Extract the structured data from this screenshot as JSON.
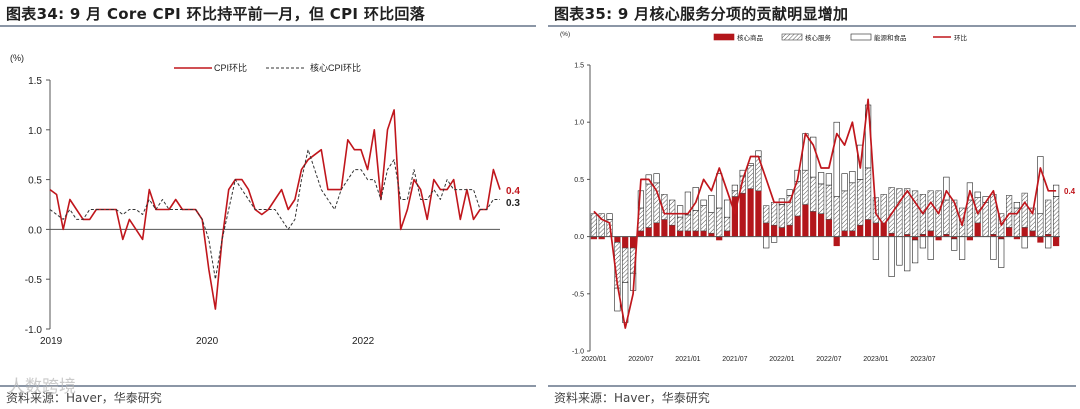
{
  "left": {
    "title": "图表34:  9 月 Core CPI 环比持平前一月，但 CPI 环比回落",
    "source": "资料来源：Haver，华泰研究"
  },
  "right": {
    "title": "图表35:  9 月核心服务分项的贡献明显增加",
    "source": "资料来源：Haver，华泰研究"
  },
  "watermark": "人数跨境",
  "colors": {
    "cpi": "#c0161c",
    "core": "#333333",
    "goods": "#b3161b",
    "rule": "#8b96a6"
  },
  "chart_data": [
    {
      "type": "line",
      "unit": "(%)",
      "ylim": [
        -1.0,
        1.5
      ],
      "yticks": [
        "1.5",
        "1.0",
        "0.5",
        "0.0",
        "-0.5",
        "-1.0"
      ],
      "xticks": [
        "2019",
        "2020",
        "2022"
      ],
      "x_start": "2019-01",
      "grid": false,
      "legend": "top",
      "series": [
        {
          "name": "CPI环比",
          "style": "solid",
          "values": [
            0.4,
            0.35,
            0.0,
            0.3,
            0.2,
            0.1,
            0.1,
            0.2,
            0.2,
            0.2,
            0.2,
            -0.1,
            0.1,
            0.0,
            -0.1,
            0.4,
            0.2,
            0.2,
            0.2,
            0.3,
            0.2,
            0.2,
            0.2,
            0.1,
            -0.4,
            -0.8,
            -0.1,
            0.4,
            0.5,
            0.5,
            0.4,
            0.2,
            0.15,
            0.2,
            0.3,
            0.4,
            0.2,
            0.3,
            0.6,
            0.7,
            0.75,
            0.8,
            0.4,
            0.4,
            0.4,
            0.9,
            0.8,
            0.8,
            0.6,
            1.0,
            0.3,
            1.0,
            1.2,
            0.0,
            0.2,
            0.5,
            0.4,
            0.1,
            0.5,
            0.4,
            0.4,
            0.5,
            0.1,
            0.4,
            0.1,
            0.2,
            0.2,
            0.6,
            0.4
          ]
        },
        {
          "name": "核心CPI环比",
          "style": "dashed",
          "values": [
            0.2,
            0.15,
            0.1,
            0.2,
            0.1,
            0.1,
            0.2,
            0.2,
            0.2,
            0.2,
            0.2,
            0.15,
            0.2,
            0.2,
            0.15,
            0.3,
            0.2,
            0.3,
            0.2,
            0.2,
            0.2,
            0.2,
            0.2,
            0.1,
            -0.1,
            -0.5,
            -0.1,
            0.2,
            0.5,
            0.4,
            0.3,
            0.2,
            0.2,
            0.2,
            0.2,
            0.1,
            0.0,
            0.1,
            0.5,
            0.8,
            0.6,
            0.4,
            0.3,
            0.2,
            0.4,
            0.5,
            0.6,
            0.6,
            0.5,
            0.5,
            0.3,
            0.6,
            0.7,
            0.3,
            0.3,
            0.6,
            0.3,
            0.3,
            0.4,
            0.3,
            0.5,
            0.4,
            0.4,
            0.4,
            0.4,
            0.2,
            0.2,
            0.3,
            0.3
          ]
        }
      ],
      "end_labels": [
        "0.4",
        "0.3"
      ]
    },
    {
      "type": "bar",
      "stacked": true,
      "unit": "(%)",
      "ylim": [
        -1.0,
        1.5
      ],
      "yticks": [
        "1.5",
        "1.0",
        "0.5",
        "0.0",
        "-0.5",
        "-1.0"
      ],
      "xticks": [
        "2020/01",
        "2020/07",
        "2021/01",
        "2021/07",
        "2022/01",
        "2022/07",
        "2023/01",
        "2023/07"
      ],
      "x_start": "2020/01",
      "legend": "top",
      "series": [
        {
          "name": "核心商品",
          "fill": "solid",
          "values": [
            -0.02,
            -0.02,
            0.0,
            -0.05,
            -0.1,
            -0.1,
            0.05,
            0.08,
            0.12,
            0.15,
            0.1,
            0.05,
            0.05,
            0.05,
            0.05,
            0.03,
            -0.03,
            0.05,
            0.35,
            0.38,
            0.42,
            0.4,
            0.12,
            0.1,
            0.08,
            0.1,
            0.18,
            0.28,
            0.22,
            0.2,
            0.15,
            -0.08,
            0.05,
            0.05,
            0.1,
            0.15,
            0.12,
            0.12,
            0.03,
            0.0,
            0.02,
            -0.03,
            0.02,
            0.05,
            -0.03,
            0.02,
            -0.02,
            0.0,
            -0.03,
            0.12,
            0.0,
            0.02,
            -0.02,
            0.08,
            -0.02,
            0.08,
            0.05,
            -0.05,
            0.02,
            -0.08
          ]
        },
        {
          "name": "核心服务",
          "fill": "hatch",
          "values": [
            0.2,
            0.2,
            0.15,
            -0.4,
            -0.3,
            -0.22,
            0.2,
            0.38,
            0.35,
            0.22,
            0.22,
            0.12,
            0.14,
            0.18,
            0.22,
            0.18,
            0.25,
            0.12,
            0.05,
            0.15,
            0.2,
            0.3,
            0.15,
            0.2,
            0.2,
            0.26,
            0.3,
            0.3,
            0.3,
            0.26,
            0.3,
            0.35,
            0.35,
            0.42,
            0.4,
            0.45,
            0.22,
            0.25,
            0.4,
            0.42,
            0.4,
            0.4,
            0.35,
            0.35,
            0.4,
            0.3,
            0.32,
            0.25,
            0.32,
            0.22,
            0.3,
            0.35,
            0.2,
            0.28,
            0.25,
            0.3,
            0.2,
            0.2,
            0.3,
            0.35
          ]
        },
        {
          "name": "能源和食品",
          "fill": "open",
          "values": [
            0.0,
            0.0,
            0.05,
            -0.2,
            -0.35,
            -0.15,
            0.15,
            0.08,
            0.08,
            0.0,
            0.0,
            0.1,
            0.2,
            0.2,
            0.05,
            0.15,
            0.3,
            0.15,
            0.05,
            0.05,
            0.02,
            0.05,
            -0.1,
            -0.05,
            0.05,
            0.05,
            0.1,
            0.32,
            0.35,
            0.1,
            0.1,
            0.65,
            0.15,
            0.1,
            0.3,
            0.55,
            -0.2,
            0.0,
            -0.35,
            -0.25,
            -0.3,
            -0.2,
            -0.1,
            -0.2,
            0.0,
            0.2,
            -0.1,
            -0.2,
            0.15,
            0.05,
            0.05,
            -0.2,
            -0.25,
            0.0,
            0.05,
            -0.1,
            0.0,
            0.5,
            -0.1,
            0.1
          ]
        }
      ],
      "line": {
        "name": "环比",
        "values": [
          0.22,
          0.15,
          0.12,
          -0.42,
          -0.8,
          -0.5,
          0.5,
          0.5,
          0.4,
          0.2,
          0.2,
          0.2,
          0.2,
          0.3,
          0.5,
          0.4,
          0.6,
          0.4,
          0.2,
          0.5,
          0.7,
          0.7,
          0.5,
          0.3,
          0.3,
          0.3,
          0.5,
          0.9,
          0.8,
          0.6,
          0.6,
          0.9,
          0.8,
          1.0,
          0.6,
          1.2,
          0.2,
          0.1,
          0.2,
          0.3,
          0.4,
          0.3,
          0.2,
          0.3,
          0.2,
          0.4,
          0.3,
          0.1,
          0.4,
          0.2,
          0.3,
          0.4,
          0.1,
          0.2,
          0.2,
          0.3,
          0.2,
          0.6,
          0.4,
          0.4
        ]
      },
      "end_label": "0.4"
    }
  ]
}
